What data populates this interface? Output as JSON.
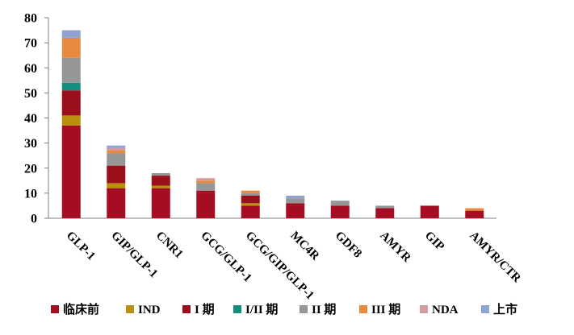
{
  "chart_data": {
    "type": "bar",
    "stacked": true,
    "categories": [
      "GLP-1",
      "GIP/GLP-1",
      "CNR1",
      "GCG/GLP-1",
      "GCG/GIP/GLP-1",
      "MC4R",
      "GDF8",
      "AMYR",
      "GIP",
      "AMYR/CTR"
    ],
    "series": [
      {
        "name": "临床前",
        "color": "#a50d22",
        "values": [
          37,
          12,
          12,
          10,
          5,
          5,
          5,
          4,
          5,
          3
        ]
      },
      {
        "name": "IND",
        "color": "#b8900e",
        "values": [
          4,
          2,
          1,
          0,
          1,
          0,
          0,
          0,
          0,
          0
        ]
      },
      {
        "name": "I 期",
        "color": "#9b0f1c",
        "values": [
          10,
          7,
          4,
          1,
          3,
          1,
          0,
          0,
          0,
          0
        ]
      },
      {
        "name": "I/II 期",
        "color": "#14907e",
        "values": [
          3,
          0,
          0,
          0,
          0,
          0,
          0,
          0,
          0,
          0
        ]
      },
      {
        "name": "II 期",
        "color": "#969696",
        "values": [
          10,
          5,
          1,
          3,
          1,
          2,
          2,
          1,
          0,
          0
        ]
      },
      {
        "name": "III 期",
        "color": "#e8893e",
        "values": [
          8,
          1,
          0,
          1,
          1,
          0,
          0,
          0,
          0,
          1
        ]
      },
      {
        "name": "NDA",
        "color": "#d39c9c",
        "values": [
          0,
          1,
          0,
          1,
          0,
          0,
          0,
          0,
          0,
          0
        ]
      },
      {
        "name": "上市",
        "color": "#8fa3d3",
        "values": [
          3,
          1,
          0,
          0,
          0,
          1,
          0,
          0,
          0,
          0
        ]
      }
    ],
    "ylim": [
      0,
      80
    ],
    "yticks": [
      0,
      10,
      20,
      30,
      40,
      50,
      60,
      70,
      80
    ],
    "grid": false,
    "legend": "bottom"
  }
}
